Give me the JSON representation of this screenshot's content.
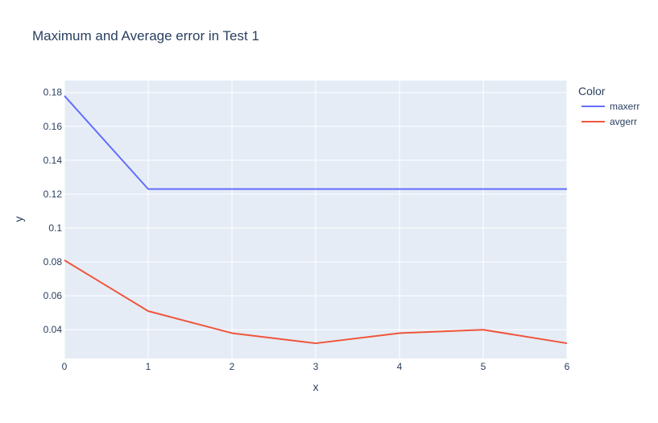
{
  "chart_data": {
    "type": "line",
    "title": "Maximum and Average error in Test 1",
    "xlabel": "x",
    "ylabel": "y",
    "x": [
      0,
      1,
      2,
      3,
      4,
      5,
      6
    ],
    "xlim": [
      0,
      6
    ],
    "ylim": [
      0.023,
      0.187
    ],
    "xticks": [
      "0",
      "1",
      "2",
      "3",
      "4",
      "5",
      "6"
    ],
    "yticks": [
      "0.04",
      "0.06",
      "0.08",
      "0.1",
      "0.12",
      "0.14",
      "0.16",
      "0.18"
    ],
    "grid": true,
    "legend": {
      "title": "Color",
      "placement": "right"
    },
    "series": [
      {
        "name": "maxerr",
        "color": "#636efa",
        "values": [
          0.178,
          0.123,
          0.123,
          0.123,
          0.123,
          0.123,
          0.123
        ]
      },
      {
        "name": "avgerr",
        "color": "#ef553b",
        "values": [
          0.081,
          0.051,
          0.038,
          0.032,
          0.038,
          0.04,
          0.032
        ]
      }
    ],
    "colors": {
      "plot_bg": "#e5ecf6",
      "grid": "#ffffff",
      "text": "#2a3f5f"
    }
  }
}
